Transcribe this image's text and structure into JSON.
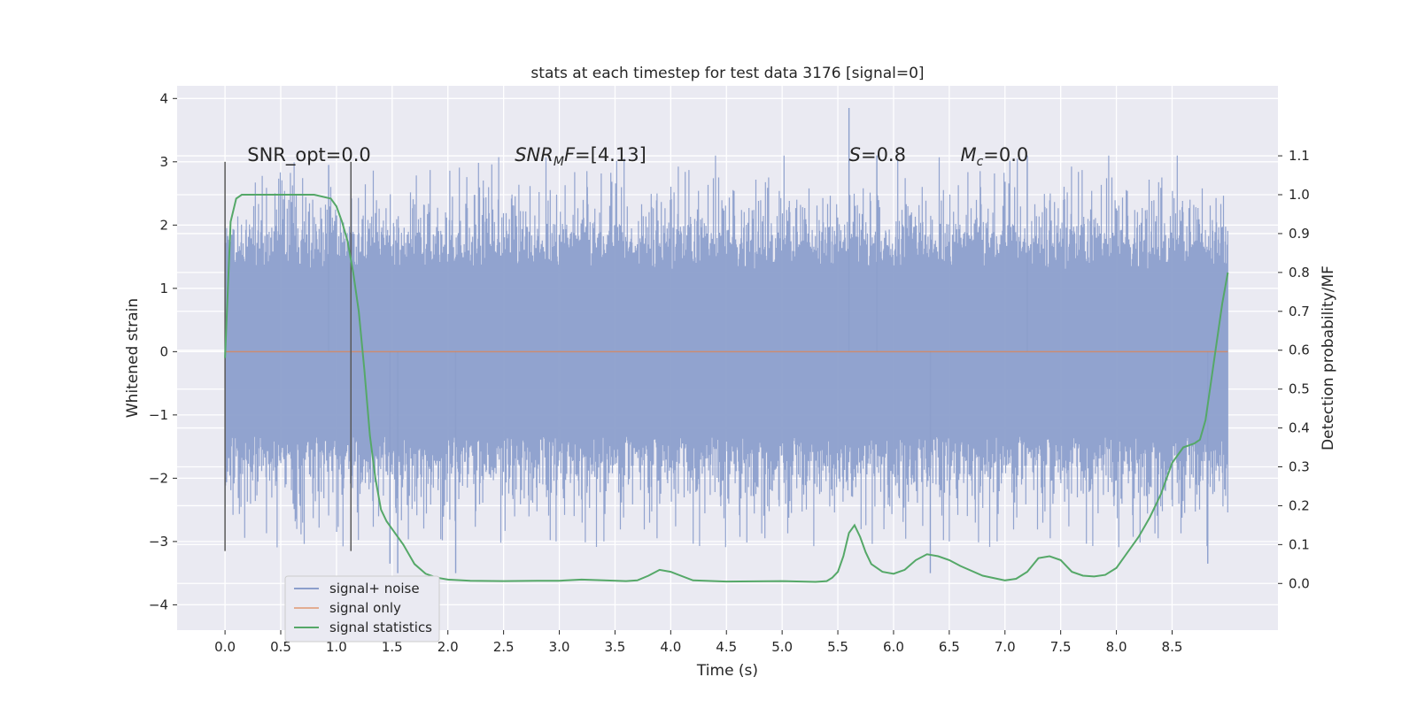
{
  "chart_data": {
    "type": "line",
    "title": "stats at each timestep for test data 3176 [signal=0]",
    "xlabel": "Time (s)",
    "ylabel": "Whitened strain",
    "y2label": "Detection probability/MF",
    "xlim": [
      -0.43,
      9.45
    ],
    "ylim": [
      -4.4,
      4.2
    ],
    "y2lim": [
      -0.12,
      1.28
    ],
    "x_ticks": [
      0.0,
      0.5,
      1.0,
      1.5,
      2.0,
      2.5,
      3.0,
      3.5,
      4.0,
      4.5,
      5.0,
      5.5,
      6.0,
      6.5,
      7.0,
      7.5,
      8.0,
      8.5
    ],
    "x_tick_labels": [
      "0.0",
      "0.5",
      "1.0",
      "1.5",
      "2.0",
      "2.5",
      "3.0",
      "3.5",
      "4.0",
      "4.5",
      "5.0",
      "5.5",
      "6.0",
      "6.5",
      "7.0",
      "7.5",
      "8.0",
      "8.5"
    ],
    "y_ticks": [
      -4,
      -3,
      -2,
      -1,
      0,
      1,
      2,
      3,
      4
    ],
    "y_tick_labels": [
      "−4",
      "−3",
      "−2",
      "−1",
      "0",
      "1",
      "2",
      "3",
      "4"
    ],
    "y2_ticks": [
      0.0,
      0.1,
      0.2,
      0.3,
      0.4,
      0.5,
      0.6,
      0.7,
      0.8,
      0.9,
      1.0,
      1.1
    ],
    "y2_tick_labels": [
      "0.0",
      "0.1",
      "0.2",
      "0.3",
      "0.4",
      "0.5",
      "0.6",
      "0.7",
      "0.8",
      "0.9",
      "1.0",
      "1.1"
    ],
    "grid": true,
    "legend_position": "lower-left",
    "colors": {
      "noise": "#8c9fcc",
      "signal": "#dd8452",
      "stats": "#55a868",
      "vline": "#595959",
      "bg": "#eaeaf2"
    },
    "noise_band": {
      "x_start": 0.0,
      "x_end": 9.0,
      "typical_range": [
        -1.8,
        1.8
      ],
      "max": 3.85,
      "min": -3.5
    },
    "noise_spikes": [
      {
        "x": 5.6,
        "y": 3.85
      },
      {
        "x": 1.55,
        "y": -3.5
      },
      {
        "x": 2.07,
        "y": -3.5
      },
      {
        "x": 6.33,
        "y": -3.5
      },
      {
        "x": 8.82,
        "y": -3.35
      },
      {
        "x": 1.48,
        "y": -3.35
      },
      {
        "x": 0.93,
        "y": 2.95
      },
      {
        "x": 5.85,
        "y": 3.1
      },
      {
        "x": 7.2,
        "y": 3.1
      }
    ],
    "series": [
      {
        "name": "signal+ noise",
        "axis": "left"
      },
      {
        "name": "signal only",
        "axis": "left",
        "x": [
          0.0,
          9.0
        ],
        "y": [
          0.0,
          0.0
        ]
      },
      {
        "name": "signal statistics",
        "axis": "right",
        "x": [
          0.0,
          0.05,
          0.1,
          0.15,
          0.25,
          0.4,
          0.6,
          0.8,
          0.95,
          1.0,
          1.05,
          1.1,
          1.15,
          1.2,
          1.25,
          1.3,
          1.35,
          1.4,
          1.45,
          1.5,
          1.6,
          1.7,
          1.8,
          1.9,
          2.0,
          2.2,
          2.5,
          2.8,
          3.0,
          3.2,
          3.4,
          3.6,
          3.7,
          3.8,
          3.9,
          4.0,
          4.2,
          4.5,
          5.0,
          5.3,
          5.4,
          5.45,
          5.5,
          5.55,
          5.6,
          5.65,
          5.7,
          5.75,
          5.8,
          5.9,
          6.0,
          6.1,
          6.2,
          6.3,
          6.4,
          6.5,
          6.6,
          6.8,
          7.0,
          7.1,
          7.2,
          7.3,
          7.4,
          7.5,
          7.6,
          7.7,
          7.8,
          7.9,
          8.0,
          8.1,
          8.2,
          8.3,
          8.4,
          8.5,
          8.6,
          8.7,
          8.75,
          8.8,
          8.85,
          8.9,
          8.95,
          9.0
        ],
        "y": [
          0.58,
          0.93,
          0.99,
          1.0,
          1.0,
          1.0,
          1.0,
          1.0,
          0.99,
          0.97,
          0.93,
          0.88,
          0.8,
          0.7,
          0.55,
          0.38,
          0.27,
          0.19,
          0.16,
          0.14,
          0.1,
          0.05,
          0.025,
          0.015,
          0.01,
          0.007,
          0.006,
          0.007,
          0.007,
          0.01,
          0.008,
          0.006,
          0.008,
          0.02,
          0.035,
          0.03,
          0.008,
          0.005,
          0.006,
          0.004,
          0.006,
          0.015,
          0.03,
          0.07,
          0.13,
          0.15,
          0.12,
          0.08,
          0.05,
          0.03,
          0.025,
          0.035,
          0.06,
          0.075,
          0.07,
          0.06,
          0.045,
          0.02,
          0.008,
          0.012,
          0.03,
          0.065,
          0.07,
          0.06,
          0.03,
          0.02,
          0.018,
          0.022,
          0.04,
          0.08,
          0.12,
          0.17,
          0.23,
          0.31,
          0.35,
          0.36,
          0.37,
          0.42,
          0.52,
          0.62,
          0.72,
          0.8
        ]
      }
    ],
    "vlines": [
      {
        "x": 0.0,
        "y_from": -3.15,
        "y_to": 3.0
      },
      {
        "x": 1.13,
        "y_from": -3.15,
        "y_to": 3.0
      }
    ],
    "annotations": [
      {
        "id": "snr-opt",
        "x": 0.2,
        "y": 3.0,
        "prefix": "SNR_opt",
        "sub": "",
        "suffix": "=0.0",
        "italic": false
      },
      {
        "id": "snr-mf",
        "x": 2.6,
        "y": 3.0,
        "prefix": "SNR",
        "sub": "M",
        "suffix": "F=[4.13]",
        "italic": true
      },
      {
        "id": "s",
        "x": 5.6,
        "y": 3.0,
        "prefix": "S",
        "sub": "",
        "suffix": "=0.8",
        "italic": true
      },
      {
        "id": "mc",
        "x": 6.6,
        "y": 3.0,
        "prefix": "M",
        "sub": "c",
        "suffix": "=0.0",
        "italic": true
      }
    ]
  }
}
